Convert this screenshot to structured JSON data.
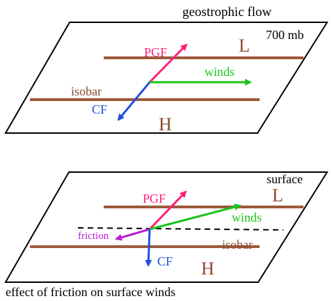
{
  "top_panel": {
    "title": "geostrophic flow",
    "level": "700 mb",
    "low_label": "L",
    "high_label": "H",
    "pgf_label": "PGF",
    "winds_label": "winds",
    "isobar_label": "isobar",
    "cf_label": "CF"
  },
  "bottom_panel": {
    "title": "surface",
    "low_label": "L",
    "high_label": "H",
    "pgf_label": "PGF",
    "winds_label": "winds",
    "friction_label": "friction",
    "isobar_label": "isobar",
    "cf_label": "CF"
  },
  "caption": "effect of friction on surface winds",
  "colors": {
    "outline": "#000000",
    "isobar": "#9c5a3c",
    "pgf": "#ff1f78",
    "winds": "#19c419",
    "cf": "#1f4fe0",
    "friction": "#b91fd6",
    "pressure_label": "#8b4a2b",
    "text": "#000000"
  }
}
